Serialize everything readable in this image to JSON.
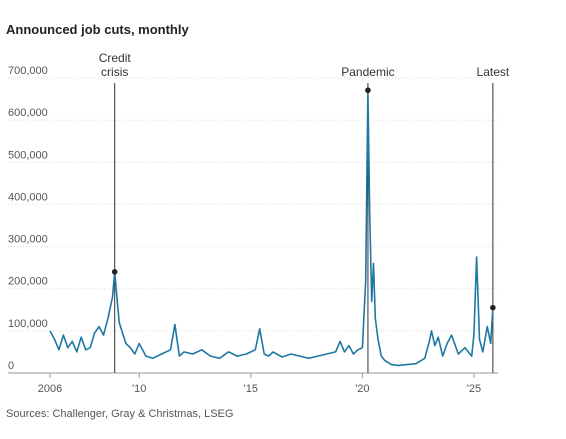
{
  "chart_data": {
    "type": "line",
    "title": "Announced job cuts, monthly",
    "source": "Sources: Challenger, Gray & Christmas, LSEG",
    "y_ticks": [
      {
        "value": 0,
        "label": "0"
      },
      {
        "value": 100000,
        "label": "100,000"
      },
      {
        "value": 200000,
        "label": "200,000"
      },
      {
        "value": 300000,
        "label": "300,000"
      },
      {
        "value": 400000,
        "label": "400,000"
      },
      {
        "value": 500000,
        "label": "500,000"
      },
      {
        "value": 600000,
        "label": "600,000"
      },
      {
        "value": 700000,
        "label": "700,000"
      }
    ],
    "x_ticks": [
      {
        "value": 2006,
        "label": "2006"
      },
      {
        "value": 2010,
        "label": "'10"
      },
      {
        "value": 2015,
        "label": "'15"
      },
      {
        "value": 2020,
        "label": "'20"
      },
      {
        "value": 2025,
        "label": "'25"
      }
    ],
    "xlim": [
      2006,
      2025.9
    ],
    "ylim": [
      0,
      700000
    ],
    "line_color": "#1f77a4",
    "series": [
      {
        "x": [
          2006.0,
          2006.2,
          2006.4,
          2006.6,
          2006.8,
          2007.0,
          2007.2,
          2007.4,
          2007.6,
          2007.8,
          2008.0,
          2008.2,
          2008.4,
          2008.6,
          2008.8,
          2008.9,
          2009.0,
          2009.1,
          2009.25,
          2009.4,
          2009.6,
          2009.8,
          2010.0,
          2010.3,
          2010.6,
          2011.0,
          2011.4,
          2011.6,
          2011.8,
          2012.0,
          2012.4,
          2012.8,
          2013.2,
          2013.6,
          2014.0,
          2014.4,
          2014.8,
          2015.2,
          2015.4,
          2015.6,
          2015.8,
          2016.0,
          2016.4,
          2016.8,
          2017.2,
          2017.6,
          2018.0,
          2018.4,
          2018.8,
          2019.0,
          2019.2,
          2019.4,
          2019.6,
          2019.8,
          2020.0,
          2020.15,
          2020.25,
          2020.33,
          2020.42,
          2020.5,
          2020.58,
          2020.7,
          2020.85,
          2021.0,
          2021.3,
          2021.6,
          2022.0,
          2022.4,
          2022.8,
          2023.0,
          2023.1,
          2023.25,
          2023.4,
          2023.6,
          2023.8,
          2024.0,
          2024.3,
          2024.6,
          2024.9,
          2025.0,
          2025.12,
          2025.25,
          2025.4,
          2025.6,
          2025.75,
          2025.85
        ],
        "y": [
          100000,
          80000,
          55000,
          90000,
          60000,
          75000,
          50000,
          85000,
          55000,
          60000,
          95000,
          110000,
          90000,
          130000,
          180000,
          240000,
          180000,
          120000,
          95000,
          70000,
          60000,
          45000,
          70000,
          40000,
          35000,
          45000,
          55000,
          115000,
          40000,
          50000,
          45000,
          55000,
          40000,
          35000,
          50000,
          40000,
          45000,
          55000,
          105000,
          45000,
          40000,
          50000,
          38000,
          45000,
          40000,
          35000,
          40000,
          45000,
          50000,
          75000,
          50000,
          65000,
          45000,
          55000,
          60000,
          220000,
          671000,
          380000,
          170000,
          260000,
          130000,
          80000,
          40000,
          30000,
          20000,
          18000,
          20000,
          22000,
          35000,
          75000,
          100000,
          65000,
          85000,
          40000,
          70000,
          90000,
          45000,
          60000,
          40000,
          90000,
          275000,
          80000,
          50000,
          110000,
          70000,
          155000
        ]
      }
    ],
    "annotations": [
      {
        "label_lines": [
          "Credit",
          "crisis"
        ],
        "x": 2008.9,
        "y": 240000
      },
      {
        "label_lines": [
          "Pandemic"
        ],
        "x": 2020.25,
        "y": 671000
      },
      {
        "label_lines": [
          "Latest"
        ],
        "x": 2025.85,
        "y": 155000
      }
    ]
  }
}
